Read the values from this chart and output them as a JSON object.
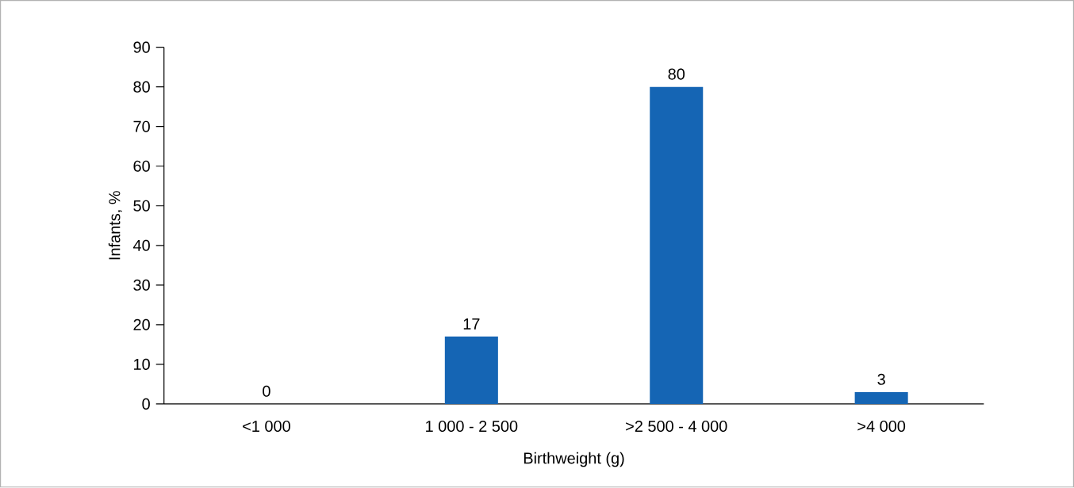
{
  "chart_data": {
    "type": "bar",
    "xlabel": "Birthweight (g)",
    "ylabel": "Infants, %",
    "categories": [
      "<1 000",
      "1 000 - 2 500",
      ">2 500 - 4 000",
      ">4 000"
    ],
    "values": [
      0,
      17,
      80,
      3
    ],
    "color": "#1565b4",
    "data_labels": true,
    "ylim": [
      0,
      90
    ],
    "yticks": [
      0,
      10,
      20,
      30,
      40,
      50,
      60,
      70,
      80,
      90
    ],
    "grid": false
  }
}
